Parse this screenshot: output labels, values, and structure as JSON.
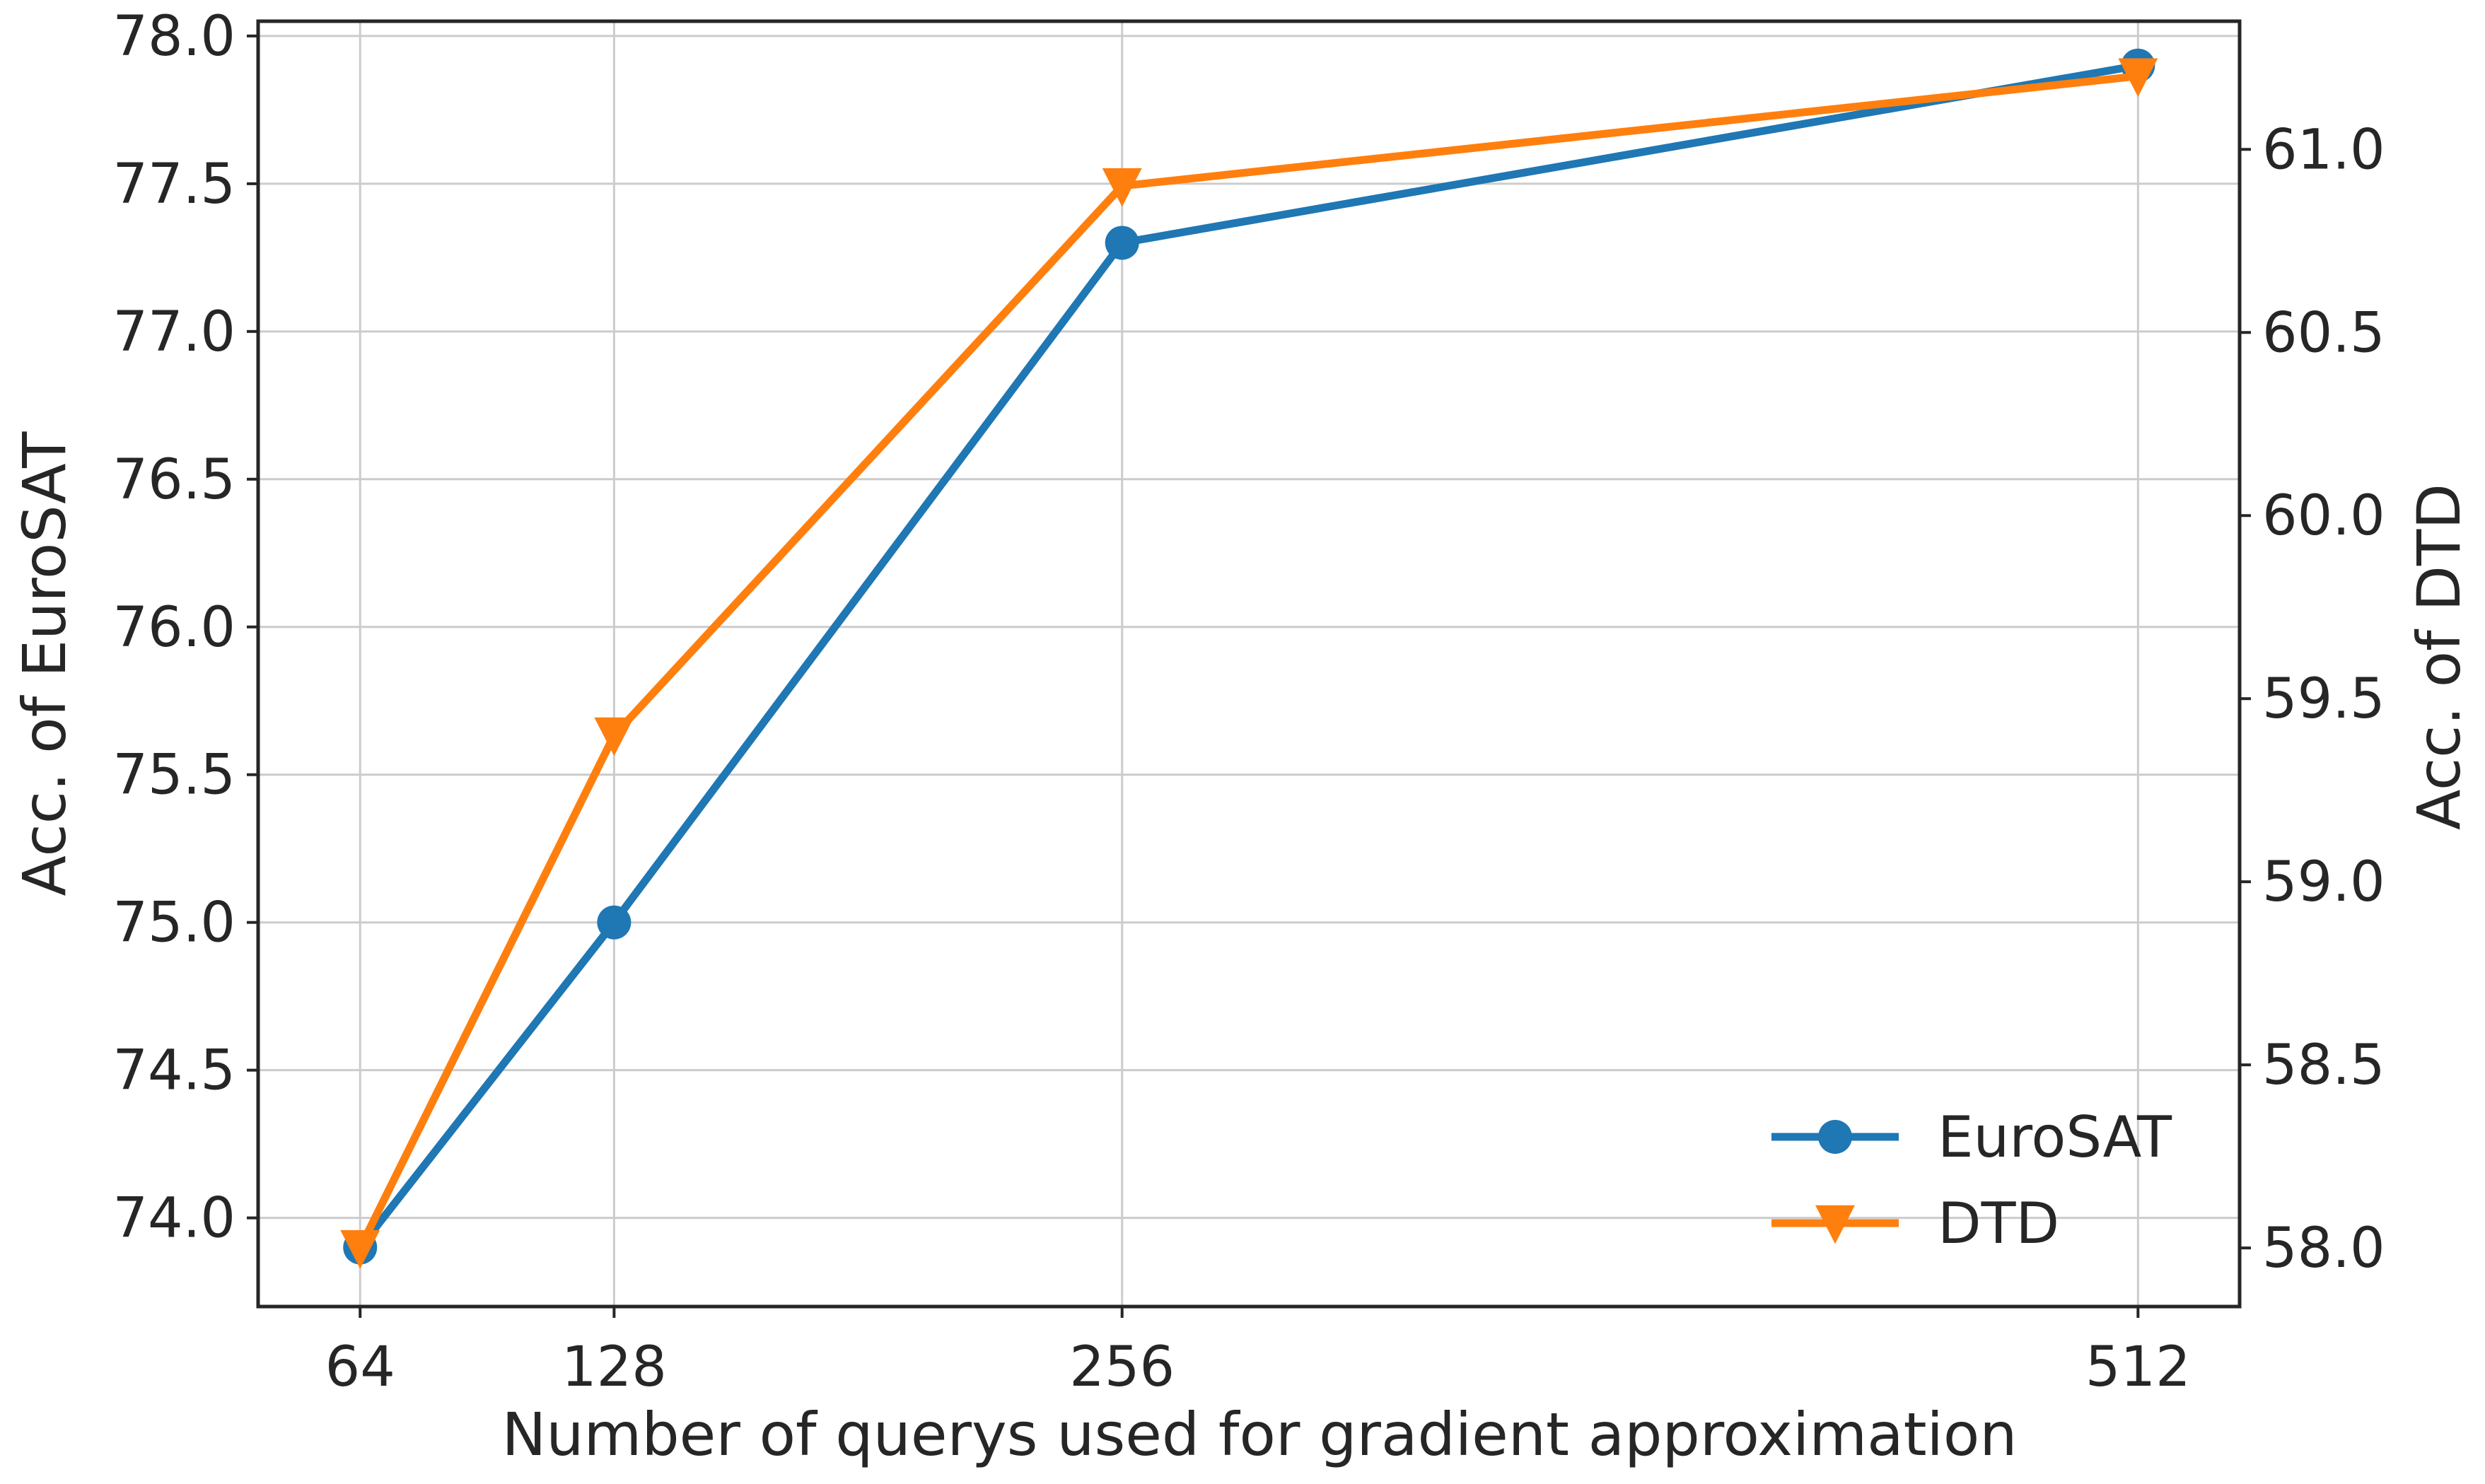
{
  "chart_data": {
    "type": "line",
    "x": [
      64,
      128,
      256,
      512
    ],
    "xtick_labels": [
      "64",
      "128",
      "256",
      "512"
    ],
    "xlabel": "Number of querys used for gradient approximation",
    "y_left": {
      "label": "Acc.  of  EuroSAT",
      "ticks": [
        74.0,
        74.5,
        75.0,
        75.5,
        76.0,
        76.5,
        77.0,
        77.5,
        78.0
      ],
      "tick_labels": [
        "74.0",
        "74.5",
        "75.0",
        "75.5",
        "76.0",
        "76.5",
        "77.0",
        "77.5",
        "78.0"
      ],
      "ylim": [
        73.7,
        78.05
      ]
    },
    "y_right": {
      "label": "Acc.  of  DTD",
      "ticks": [
        58.0,
        58.5,
        59.0,
        59.5,
        60.0,
        60.5,
        61.0
      ],
      "tick_labels": [
        "58.0",
        "58.5",
        "59.0",
        "59.5",
        "60.0",
        "60.5",
        "61.0"
      ],
      "ylim": [
        57.84,
        61.35
      ]
    },
    "series": [
      {
        "name": "EuroSAT",
        "axis": "left",
        "marker": "circle",
        "color": "#1f77b4",
        "values": [
          73.9,
          75.0,
          77.3,
          77.9
        ]
      },
      {
        "name": "DTD",
        "axis": "right",
        "marker": "triangle-down",
        "color": "#ff7f0e",
        "values": [
          58.0,
          59.4,
          60.9,
          61.2
        ]
      }
    ],
    "grid": true,
    "legend_position": "bottom-right"
  }
}
